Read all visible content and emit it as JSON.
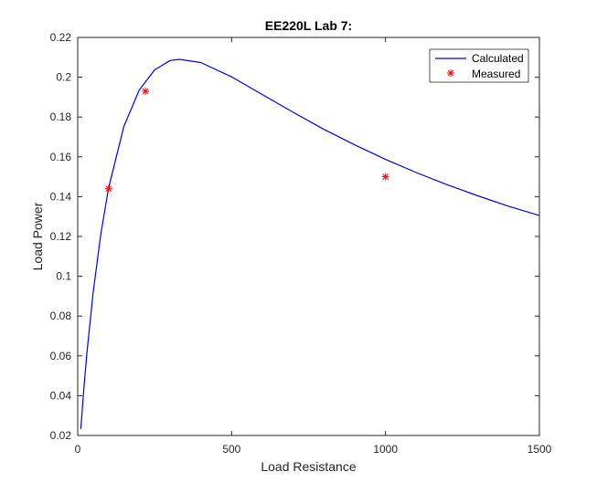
{
  "chart_data": {
    "type": "line",
    "title": "EE220L Lab 7:",
    "xlabel": "Load Resistance",
    "ylabel": "Load Power",
    "xlim": [
      0,
      1500
    ],
    "ylim": [
      0.02,
      0.22
    ],
    "xticks": [
      0,
      500,
      1000,
      1500
    ],
    "xtick_labels": [
      "0",
      "500",
      "1000",
      "1500"
    ],
    "yticks": [
      0.02,
      0.04,
      0.06,
      0.08,
      0.1,
      0.12,
      0.14,
      0.16,
      0.18,
      0.2,
      0.22
    ],
    "ytick_labels": [
      "0.02",
      "0.04",
      "0.06",
      "0.08",
      "0.1",
      "0.12",
      "0.14",
      "0.16",
      "0.18",
      "0.2",
      "0.22"
    ],
    "grid": false,
    "legend_position": "top-right",
    "series": [
      {
        "name": "Calculated",
        "style": "line",
        "color": "#0000ff",
        "x": [
          10,
          20,
          30,
          50,
          75,
          100,
          150,
          200,
          250,
          300,
          330,
          400,
          500,
          600,
          700,
          800,
          900,
          1000,
          1100,
          1200,
          1300,
          1400,
          1500
        ],
        "y": [
          0.0233,
          0.0436,
          0.0616,
          0.0916,
          0.1213,
          0.1442,
          0.1753,
          0.1936,
          0.2037,
          0.2084,
          0.209,
          0.2074,
          0.2002,
          0.1913,
          0.1824,
          0.1738,
          0.166,
          0.1587,
          0.1521,
          0.146,
          0.1404,
          0.1352,
          0.1305
        ]
      },
      {
        "name": "Measured",
        "style": "marker",
        "marker": "*",
        "color": "#ff0000",
        "x": [
          100,
          220,
          1000
        ],
        "y": [
          0.144,
          0.193,
          0.15
        ]
      }
    ]
  }
}
